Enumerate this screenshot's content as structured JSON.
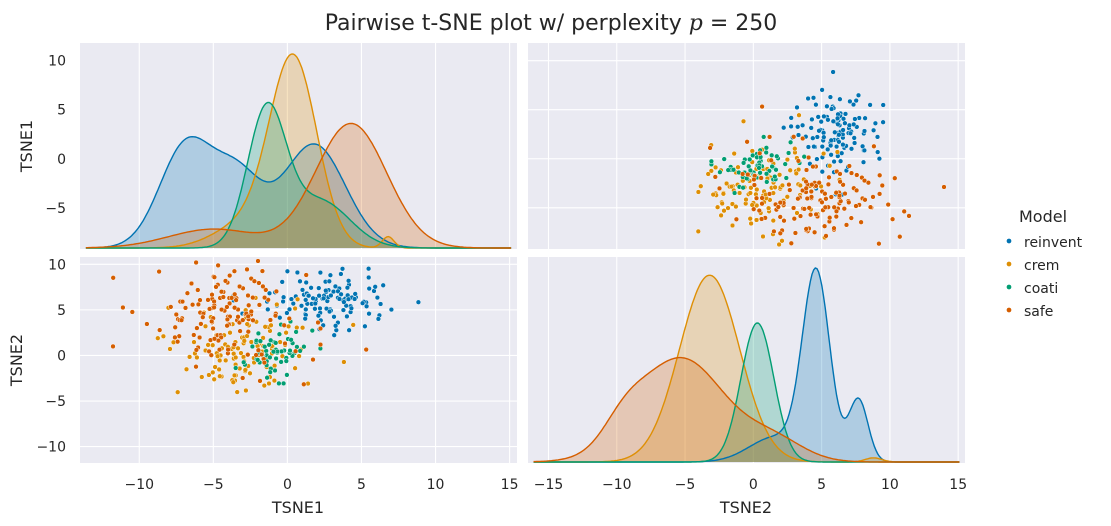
{
  "chart_data": {
    "type": "pairplot",
    "title_prefix": "Pairwise t-SNE plot w/ perplexity ",
    "title_var": "p",
    "title_suffix": " = 250",
    "variables": [
      "TSNE1",
      "TSNE2"
    ],
    "legend": {
      "title": "Model",
      "placement": "right",
      "entries": [
        {
          "name": "reinvent",
          "color": "#0173B2"
        },
        {
          "name": "crem",
          "color": "#DE8F05"
        },
        {
          "name": "coati",
          "color": "#029E73"
        },
        {
          "name": "safe",
          "color": "#D55E00"
        }
      ]
    },
    "ranges": {
      "TSNE1": [
        -14,
        15.5
      ],
      "TSNE2": [
        -16.5,
        15.5
      ]
    },
    "ticks": {
      "TSNE1": [
        -10,
        -5,
        0,
        5,
        10,
        15
      ],
      "TSNE2": [
        -15,
        -10,
        -5,
        0,
        5,
        10,
        15
      ]
    },
    "axis_limits": {
      "TSNE1": [
        -9.2,
        11.8
      ],
      "TSNE2": [
        -11.8,
        10.8
      ]
    },
    "axis_ticks": {
      "TSNE1": [
        -5,
        0,
        5,
        10
      ],
      "TSNE2": [
        -10,
        -5,
        0,
        5,
        10
      ]
    },
    "kde": {
      "TSNE1": [
        {
          "name": "reinvent",
          "components": [
            [
              -6.8,
              1.8,
              0.55
            ],
            [
              -3.3,
              1.6,
              0.35
            ],
            [
              1.8,
              2.1,
              0.55
            ]
          ]
        },
        {
          "name": "crem",
          "components": [
            [
              0.4,
              1.6,
              1.0
            ],
            [
              -3.0,
              2.0,
              0.12
            ],
            [
              6.8,
              0.4,
              0.06
            ]
          ]
        },
        {
          "name": "coati",
          "components": [
            [
              -1.4,
              1.3,
              0.72
            ],
            [
              2.2,
              2.0,
              0.25
            ]
          ]
        },
        {
          "name": "safe",
          "components": [
            [
              4.3,
              2.4,
              0.66
            ],
            [
              -5.0,
              3.0,
              0.1
            ]
          ]
        }
      ],
      "TSNE2": [
        {
          "name": "reinvent",
          "components": [
            [
              4.6,
              1.0,
              0.9
            ],
            [
              7.7,
              0.7,
              0.3
            ],
            [
              1.6,
              1.9,
              0.12
            ]
          ]
        },
        {
          "name": "crem",
          "components": [
            [
              -3.2,
              2.2,
              0.9
            ],
            [
              8.8,
              0.6,
              0.02
            ]
          ]
        },
        {
          "name": "coati",
          "components": [
            [
              0.3,
              1.2,
              0.67
            ]
          ]
        },
        {
          "name": "safe",
          "components": [
            [
              -5.3,
              3.2,
              0.5
            ],
            [
              -9.5,
              1.5,
              0.1
            ],
            [
              1.5,
              2.2,
              0.1
            ]
          ]
        }
      ]
    },
    "clusters": [
      {
        "name": "reinvent",
        "count": 120,
        "center": [
          2.8,
          6.2
        ],
        "spread": [
          2.2,
          1.5
        ]
      },
      {
        "name": "crem",
        "count": 130,
        "center": [
          -3.0,
          0.5
        ],
        "spread": [
          2.4,
          2.3
        ]
      },
      {
        "name": "coati",
        "count": 60,
        "center": [
          -1.0,
          0.3
        ],
        "spread": [
          1.2,
          1.4
        ]
      },
      {
        "name": "safe",
        "count": 150,
        "center": [
          -4.5,
          4.3
        ],
        "spread": [
          2.8,
          3.0
        ]
      }
    ]
  }
}
